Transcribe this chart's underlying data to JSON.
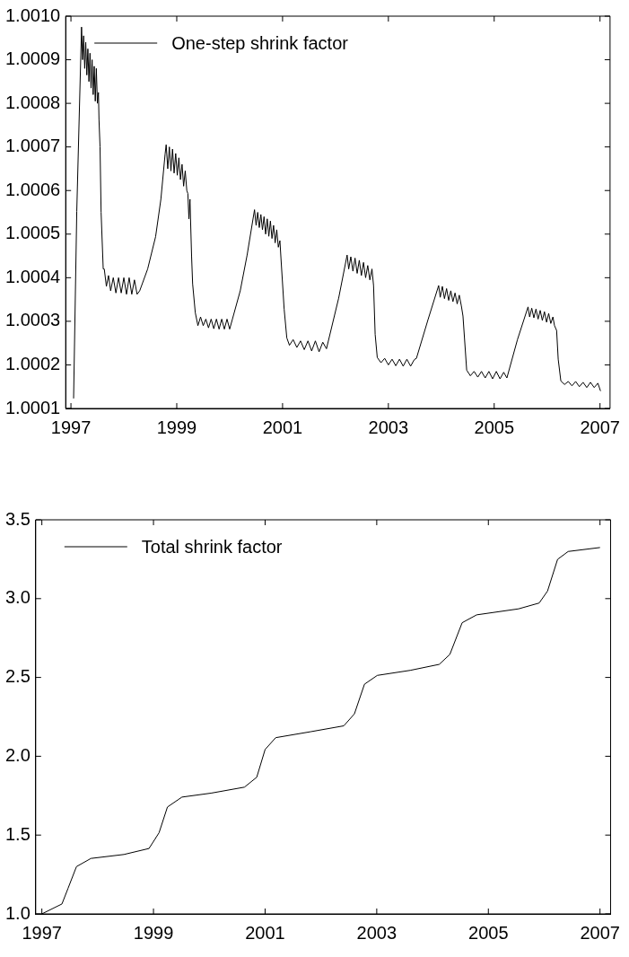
{
  "chart_data": [
    {
      "type": "line",
      "xlim": [
        1996.9,
        2007.19
      ],
      "xticks": [
        1997,
        1999,
        2001,
        2003,
        2005,
        2007
      ],
      "ylim": [
        1.0001,
        1.001
      ],
      "yticks": [
        1.0001,
        1.0002,
        1.0003,
        1.0004,
        1.0005,
        1.0006,
        1.0007,
        1.0008,
        1.0009,
        {
          "value": 1.001,
          "label": "1.0010"
        }
      ],
      "grid": false,
      "legend": "top left",
      "marker": "none",
      "line_style": "solid",
      "series": [
        {
          "name": "One-step shrink factor",
          "color": "#000000",
          "x": [
            1997.05,
            1997.11,
            1997.2,
            1997.22,
            1997.24,
            1997.26,
            1997.28,
            1997.3,
            1997.32,
            1997.34,
            1997.36,
            1997.38,
            1997.4,
            1997.42,
            1997.44,
            1997.46,
            1997.48,
            1997.5,
            1997.52,
            1997.53,
            1997.55,
            1997.57,
            1997.61,
            1997.63,
            1997.67,
            1997.71,
            1997.75,
            1997.8,
            1997.85,
            1997.9,
            1997.95,
            1998,
            1998.05,
            1998.1,
            1998.15,
            1998.2,
            1998.25,
            1998.3,
            1998.45,
            1998.6,
            1998.7,
            1998.78,
            1998.8,
            1998.83,
            1998.86,
            1998.89,
            1998.92,
            1998.95,
            1998.98,
            1999.01,
            1999.04,
            1999.07,
            1999.1,
            1999.13,
            1999.16,
            1999.19,
            1999.21,
            1999.23,
            1999.25,
            1999.28,
            1999.3,
            1999.35,
            1999.4,
            1999.45,
            1999.5,
            1999.55,
            1999.6,
            1999.65,
            1999.7,
            1999.75,
            1999.8,
            1999.85,
            1999.9,
            1999.95,
            2000,
            2000.05,
            2000.2,
            2000.33,
            2000.47,
            2000.5,
            2000.53,
            2000.56,
            2000.59,
            2000.62,
            2000.65,
            2000.68,
            2000.71,
            2000.74,
            2000.77,
            2000.8,
            2000.83,
            2000.86,
            2000.89,
            2000.92,
            2000.95,
            2000.97,
            2001.03,
            2001.08,
            2001.13,
            2001.2,
            2001.27,
            2001.34,
            2001.41,
            2001.48,
            2001.55,
            2001.62,
            2001.69,
            2001.76,
            2001.83,
            2002.06,
            2002.22,
            2002.25,
            2002.29,
            2002.33,
            2002.37,
            2002.41,
            2002.45,
            2002.49,
            2002.53,
            2002.57,
            2002.61,
            2002.65,
            2002.69,
            2002.72,
            2002.75,
            2002.79,
            2002.86,
            2002.93,
            2003,
            2003.07,
            2003.14,
            2003.21,
            2003.28,
            2003.35,
            2003.42,
            2003.49,
            2003.53,
            2003.75,
            2003.95,
            2003.98,
            2004.02,
            2004.06,
            2004.1,
            2004.14,
            2004.18,
            2004.22,
            2004.26,
            2004.3,
            2004.34,
            2004.38,
            2004.41,
            2004.48,
            2004.55,
            2004.62,
            2004.69,
            2004.76,
            2004.83,
            2004.9,
            2004.97,
            2005.04,
            2005.11,
            2005.18,
            2005.24,
            2005.44,
            2005.64,
            2005.67,
            2005.71,
            2005.75,
            2005.79,
            2005.83,
            2005.87,
            2005.91,
            2005.95,
            2005.99,
            2006.03,
            2006.07,
            2006.11,
            2006.14,
            2006.18,
            2006.21,
            2006.26,
            2006.33,
            2006.4,
            2006.47,
            2006.54,
            2006.61,
            2006.68,
            2006.75,
            2006.82,
            2006.89,
            2006.96,
            2007.01
          ],
          "values": [
            1.000123,
            1.000552,
            1.000975,
            1.0009,
            1.000955,
            1.00088,
            1.00094,
            1.000865,
            1.000925,
            1.00085,
            1.000915,
            1.000835,
            1.0009,
            1.00082,
            1.000885,
            1.000805,
            1.00088,
            1.0008,
            1.000825,
            1.000763,
            1.0007,
            1.00055,
            1.00042,
            1.00042,
            1.00038,
            1.000405,
            1.00037,
            1.0004,
            1.000365,
            1.0004,
            1.000365,
            1.0004,
            1.000362,
            1.0004,
            1.000362,
            1.000395,
            1.000362,
            1.00037,
            1.00042,
            1.000494,
            1.00058,
            1.000684,
            1.000705,
            1.00065,
            1.0007,
            1.000645,
            1.000695,
            1.00064,
            1.000685,
            1.000635,
            1.000675,
            1.000625,
            1.00066,
            1.00061,
            1.000645,
            1.0006,
            1.000593,
            1.000535,
            1.00058,
            1.00045,
            1.000386,
            1.00032,
            1.00029,
            1.00031,
            1.00029,
            1.000305,
            1.000285,
            1.000305,
            1.000283,
            1.000305,
            1.000282,
            1.000305,
            1.000282,
            1.000305,
            1.000282,
            1.000304,
            1.00037,
            1.000452,
            1.000556,
            1.00052,
            1.00055,
            1.000515,
            1.000545,
            1.00051,
            1.00054,
            1.0005,
            1.000535,
            1.000495,
            1.00053,
            1.00049,
            1.00052,
            1.00048,
            1.00051,
            1.00047,
            1.000485,
            1.000444,
            1.000328,
            1.000262,
            1.000245,
            1.000258,
            1.00024,
            1.000255,
            1.000235,
            1.000255,
            1.000232,
            1.000255,
            1.00023,
            1.000252,
            1.000237,
            1.000353,
            1.000452,
            1.00042,
            1.000448,
            1.000415,
            1.000445,
            1.00041,
            1.00044,
            1.000405,
            1.000435,
            1.0004,
            1.000428,
            1.000395,
            1.00042,
            1.000382,
            1.00027,
            1.000217,
            1.000205,
            1.000215,
            1.0002,
            1.000213,
            1.000198,
            1.000213,
            1.000197,
            1.000213,
            1.000197,
            1.000212,
            1.000215,
            1.000304,
            1.000382,
            1.000355,
            1.00038,
            1.000352,
            1.000375,
            1.000348,
            1.00037,
            1.000345,
            1.000365,
            1.00034,
            1.00036,
            1.000335,
            1.000312,
            1.000188,
            1.000175,
            1.000185,
            1.000172,
            1.000185,
            1.00017,
            1.000185,
            1.000168,
            1.000185,
            1.000168,
            1.000183,
            1.00017,
            1.000258,
            1.000333,
            1.00031,
            1.00033,
            1.000308,
            1.000328,
            1.000305,
            1.000325,
            1.000302,
            1.000322,
            1.000298,
            1.000318,
            1.000295,
            1.00031,
            1.00029,
            1.000279,
            1.000213,
            1.000163,
            1.000155,
            1.000162,
            1.000152,
            1.000162,
            1.00015,
            1.00016,
            1.000148,
            1.00016,
            1.000148,
            1.000158,
            1.00014
          ]
        }
      ]
    },
    {
      "type": "line",
      "xlim": [
        1996.89,
        2007.19
      ],
      "xticks": [
        1997,
        1999,
        2001,
        2003,
        2005,
        2007
      ],
      "ylim": [
        1,
        3.5
      ],
      "yticks": [
        {
          "value": 1,
          "label": "1.0"
        },
        1.5,
        {
          "value": 2,
          "label": "2.0"
        },
        2.5,
        {
          "value": 3,
          "label": "3.0"
        },
        3.5
      ],
      "grid": false,
      "legend": "top left",
      "marker": "none",
      "line_style": "solid",
      "series": [
        {
          "name": "Total shrink factor",
          "color": "#000000",
          "x": [
            1997,
            1997.36,
            1997.47,
            1997.62,
            1997.88,
            1998.47,
            1998.92,
            1999.1,
            1999.25,
            1999.51,
            2000.03,
            2000.63,
            2000.85,
            2001,
            2001.19,
            2001.82,
            2002.41,
            2002.6,
            2002.78,
            2003.01,
            2003.6,
            2004.12,
            2004.31,
            2004.53,
            2004.79,
            2005.54,
            2005.91,
            2006.06,
            2006.24,
            2006.43,
            2007
          ],
          "values": [
            1,
            1.063,
            1.163,
            1.3,
            1.352,
            1.377,
            1.415,
            1.515,
            1.678,
            1.741,
            1.766,
            1.804,
            1.867,
            2.043,
            2.118,
            2.156,
            2.193,
            2.269,
            2.457,
            2.513,
            2.545,
            2.583,
            2.646,
            2.847,
            2.897,
            2.935,
            2.972,
            3.048,
            3.249,
            3.299,
            3.324
          ]
        }
      ]
    }
  ]
}
